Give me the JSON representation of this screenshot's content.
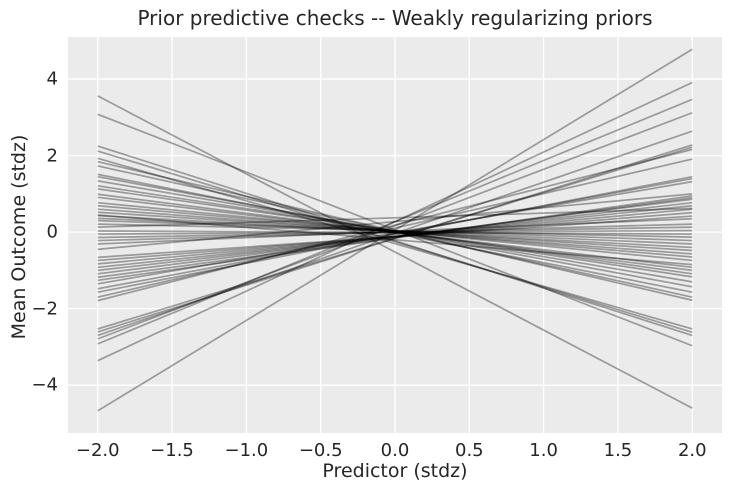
{
  "chart_data": {
    "type": "line",
    "title": "Prior predictive checks -- Weakly regularizing priors",
    "xlabel": "Predictor (stdz)",
    "ylabel": "Mean Outcome (stdz)",
    "xlim": [
      -2.2,
      2.2
    ],
    "ylim": [
      -5.25,
      5.1
    ],
    "x_ticks": [
      -2.0,
      -1.5,
      -1.0,
      -0.5,
      0.0,
      0.5,
      1.0,
      1.5,
      2.0
    ],
    "x_tick_labels": [
      "−2.0",
      "−1.5",
      "−1.0",
      "−0.5",
      "0.0",
      "0.5",
      "1.0",
      "1.5",
      "2.0"
    ],
    "y_ticks": [
      -4,
      -2,
      0,
      2,
      4
    ],
    "y_tick_labels": [
      "−4",
      "−2",
      "0",
      "2",
      "4"
    ],
    "grid": true,
    "legend": null,
    "n_lines": 50,
    "x_endpoints": [
      -2,
      2
    ],
    "lines_y_at_x_endpoints": [
      [
        -4.67,
        4.78
      ],
      [
        3.56,
        -4.6
      ],
      [
        -3.36,
        3.91
      ],
      [
        3.08,
        -2.97
      ],
      [
        -2.92,
        3.47
      ],
      [
        -2.79,
        3.12
      ],
      [
        2.25,
        -2.7
      ],
      [
        2.12,
        -2.62
      ],
      [
        -2.7,
        2.64
      ],
      [
        -2.61,
        2.28
      ],
      [
        -2.53,
        2.22
      ],
      [
        1.93,
        -2.53
      ],
      [
        -1.79,
        2.16
      ],
      [
        1.84,
        -1.78
      ],
      [
        -1.7,
        1.91
      ],
      [
        1.73,
        -1.7
      ],
      [
        -1.57,
        1.45
      ],
      [
        1.51,
        -1.57
      ],
      [
        -1.48,
        1.4
      ],
      [
        1.45,
        -1.43
      ],
      [
        -1.35,
        1.32
      ],
      [
        1.34,
        -1.3
      ],
      [
        -1.26,
        0.95
      ],
      [
        1.21,
        -1.17
      ],
      [
        -1.18,
        0.9
      ],
      [
        1.13,
        -1.09
      ],
      [
        -1.09,
        0.86
      ],
      [
        0.99,
        -1.0
      ],
      [
        -1.0,
        0.77
      ],
      [
        0.91,
        -0.92
      ],
      [
        -0.92,
        0.69
      ],
      [
        0.77,
        -0.74
      ],
      [
        -0.83,
        0.6
      ],
      [
        0.69,
        -0.65
      ],
      [
        -0.74,
        0.51
      ],
      [
        0.6,
        -0.57
      ],
      [
        -0.66,
        0.42
      ],
      [
        0.52,
        -0.48
      ],
      [
        -0.31,
        0.35
      ],
      [
        0.43,
        -0.4
      ],
      [
        -0.22,
        0.21
      ],
      [
        0.36,
        -0.31
      ],
      [
        -0.14,
        0.13
      ],
      [
        0.3,
        -0.22
      ],
      [
        -0.05,
        0.04
      ],
      [
        0.21,
        -0.13
      ],
      [
        0.03,
        -0.05
      ],
      [
        0.13,
        0.62
      ],
      [
        -0.45,
        1.0
      ],
      [
        0.45,
        -0.85
      ]
    ],
    "line_style": {
      "color": "#000000",
      "alpha": 0.35,
      "width": 1.7
    },
    "colors": {
      "figure_background": "#ffffff",
      "axes_background": "#ebebeb",
      "gridline": "#ffffff",
      "text": "#262626"
    }
  }
}
